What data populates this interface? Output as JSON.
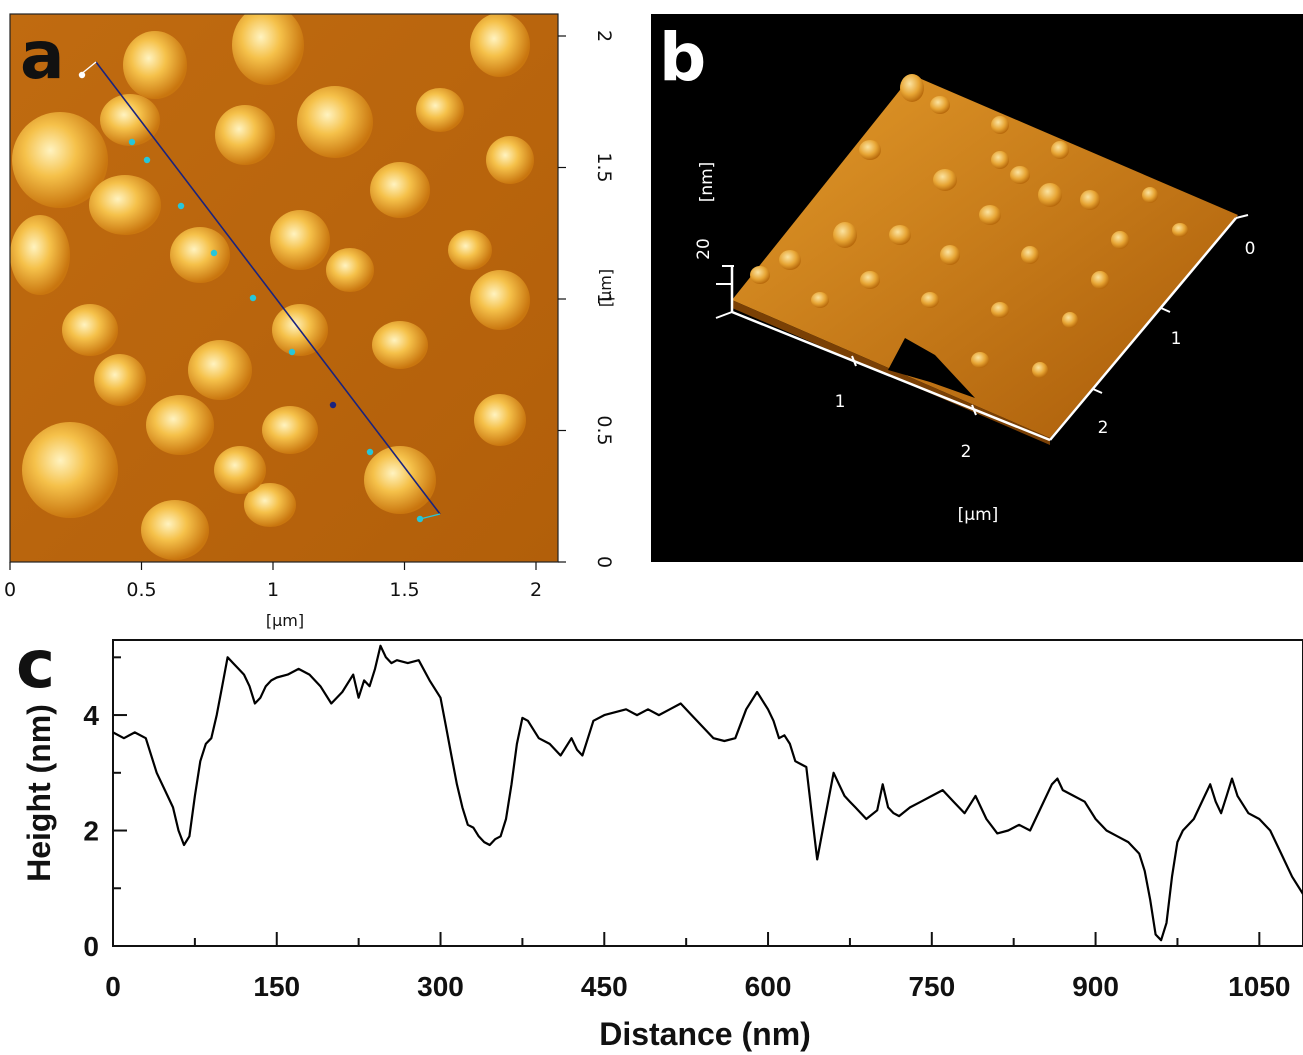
{
  "panels": {
    "a": {
      "letter": "a",
      "x_ticks": [
        "0",
        "0.5",
        "1",
        "1.5",
        "2"
      ],
      "y_ticks": [
        "0",
        "0.5",
        "1",
        "1.5",
        "2"
      ],
      "x_unit": "[µm]",
      "y_unit": "[µm]",
      "colors": {
        "bg": "#b8650c",
        "mid": "#d98d1c",
        "bright": "#f5c14a",
        "highlight": "#fff3c0",
        "profile_line": "#1a237e",
        "marker": "#26c6da"
      }
    },
    "b": {
      "letter": "b",
      "z_tick": "20",
      "z_unit": "[nm]",
      "front_ticks": [
        "1",
        "2"
      ],
      "side_ticks": [
        "0",
        "1",
        "2"
      ],
      "x_unit": "[µm]",
      "colors": {
        "bg": "#000000",
        "surface": "#c7780f",
        "axis": "#ffffff"
      }
    },
    "c": {
      "letter": "c"
    }
  },
  "chart_data": {
    "type": "line",
    "xlabel": "Distance (nm)",
    "ylabel": "Height (nm)",
    "xlim": [
      0,
      1090
    ],
    "ylim": [
      0,
      5.3
    ],
    "x_ticks": [
      0,
      150,
      300,
      450,
      600,
      750,
      900,
      1050
    ],
    "y_ticks": [
      0,
      2,
      4
    ],
    "grid": false,
    "line_color": "#000000",
    "series": [
      {
        "x": [
          0,
          10,
          20,
          30,
          40,
          50,
          55,
          60,
          65,
          70,
          75,
          80,
          85,
          90,
          95,
          100,
          105,
          110,
          115,
          120,
          125,
          130,
          135,
          140,
          145,
          150,
          160,
          170,
          180,
          190,
          200,
          210,
          220,
          225,
          230,
          235,
          240,
          245,
          250,
          255,
          260,
          270,
          280,
          290,
          300,
          305,
          310,
          315,
          320,
          325,
          330,
          335,
          340,
          345,
          350,
          355,
          360,
          365,
          370,
          375,
          380,
          390,
          400,
          410,
          420,
          425,
          430,
          435,
          440,
          450,
          460,
          470,
          480,
          490,
          500,
          510,
          520,
          530,
          540,
          550,
          560,
          570,
          580,
          590,
          600,
          605,
          610,
          615,
          620,
          625,
          630,
          635,
          640,
          645,
          650,
          655,
          660,
          665,
          670,
          675,
          680,
          690,
          700,
          705,
          710,
          715,
          720,
          730,
          740,
          750,
          760,
          770,
          780,
          790,
          800,
          810,
          820,
          830,
          840,
          850,
          860,
          865,
          870,
          880,
          890,
          900,
          910,
          920,
          930,
          940,
          945,
          950,
          955,
          960,
          965,
          970,
          975,
          980,
          990,
          1000,
          1005,
          1010,
          1015,
          1020,
          1025,
          1030,
          1040,
          1050,
          1060,
          1070,
          1080,
          1090
        ],
        "y": [
          3.7,
          3.6,
          3.7,
          3.6,
          3.0,
          2.6,
          2.4,
          2.0,
          1.75,
          1.9,
          2.6,
          3.2,
          3.5,
          3.6,
          4.0,
          4.5,
          5.0,
          4.9,
          4.8,
          4.7,
          4.5,
          4.2,
          4.3,
          4.5,
          4.6,
          4.65,
          4.7,
          4.8,
          4.7,
          4.5,
          4.2,
          4.4,
          4.7,
          4.3,
          4.6,
          4.5,
          4.8,
          5.2,
          5.0,
          4.9,
          4.95,
          4.9,
          4.95,
          4.6,
          4.3,
          3.8,
          3.3,
          2.8,
          2.4,
          2.1,
          2.05,
          1.9,
          1.8,
          1.75,
          1.85,
          1.9,
          2.2,
          2.8,
          3.5,
          3.95,
          3.9,
          3.6,
          3.5,
          3.3,
          3.6,
          3.4,
          3.3,
          3.6,
          3.9,
          4.0,
          4.05,
          4.1,
          4.0,
          4.1,
          4.0,
          4.1,
          4.2,
          4.0,
          3.8,
          3.6,
          3.55,
          3.6,
          4.1,
          4.4,
          4.1,
          3.9,
          3.6,
          3.65,
          3.5,
          3.2,
          3.15,
          3.1,
          2.3,
          1.5,
          2.0,
          2.5,
          3.0,
          2.8,
          2.6,
          2.5,
          2.4,
          2.2,
          2.35,
          2.8,
          2.4,
          2.3,
          2.25,
          2.4,
          2.5,
          2.6,
          2.7,
          2.5,
          2.3,
          2.6,
          2.2,
          1.95,
          2.0,
          2.1,
          2.0,
          2.4,
          2.8,
          2.9,
          2.7,
          2.6,
          2.5,
          2.2,
          2.0,
          1.9,
          1.8,
          1.6,
          1.3,
          0.8,
          0.2,
          0.1,
          0.4,
          1.2,
          1.8,
          2.0,
          2.2,
          2.6,
          2.8,
          2.5,
          2.3,
          2.6,
          2.9,
          2.6,
          2.3,
          2.2,
          2.0,
          1.6,
          1.2,
          0.9
        ]
      }
    ]
  }
}
